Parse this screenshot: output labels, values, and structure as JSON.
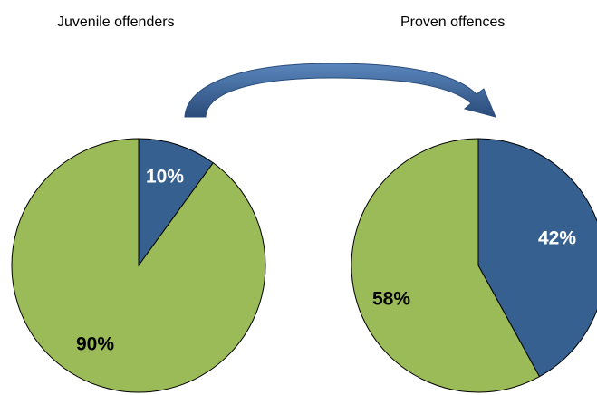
{
  "colors": {
    "blue": "#36608F",
    "green": "#9BBB59",
    "arrow_dark": "#2A4C7A",
    "arrow_light": "#5A86BD",
    "outline": "#000000"
  },
  "chart_data": [
    {
      "type": "pie",
      "title": "Juvenile offenders",
      "slices": [
        {
          "value": 10,
          "label": "10%",
          "color": "#36608F",
          "label_color": "#FFFFFF"
        },
        {
          "value": 90,
          "label": "90%",
          "color": "#9BBB59",
          "label_color": "#000000"
        }
      ]
    },
    {
      "type": "pie",
      "title": "Proven offences",
      "slices": [
        {
          "value": 42,
          "label": "42%",
          "color": "#36608F",
          "label_color": "#FFFFFF"
        },
        {
          "value": 58,
          "label": "58%",
          "color": "#9BBB59",
          "label_color": "#000000"
        }
      ]
    }
  ]
}
